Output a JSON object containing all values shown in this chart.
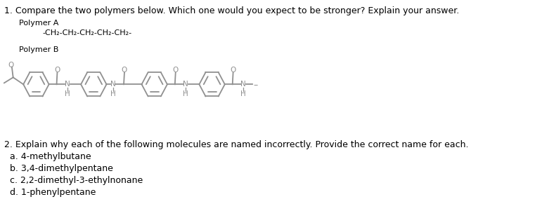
{
  "title1": "1. Compare the two polymers below. Which one would you expect to be stronger? Explain your answer.",
  "polymer_a_label": "Polymer A",
  "polymer_a_formula": "-CH₂-CH₂-CH₂-CH₂-CH₂-",
  "polymer_b_label": "Polymer B",
  "title2": "2. Explain why each of the following molecules are named incorrectly. Provide the correct name for each.",
  "items": [
    "a. 4-methylbutane",
    "b. 3,4-dimethylpentane",
    "c. 2,2-dimethyl-3-ethylnonane",
    "d. 1-phenylpentane"
  ],
  "bg_color": "#ffffff",
  "text_color": "#000000",
  "struct_color": "#909090",
  "font_size_title": 9.0,
  "font_size_label": 8.0,
  "font_size_formula": 8.0,
  "font_size_items": 9.0,
  "font_size_atom": 7.5
}
